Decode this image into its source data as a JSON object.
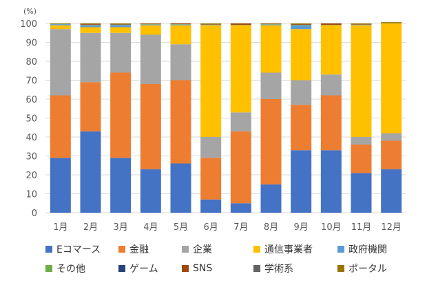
{
  "chart_data": {
    "type": "bar",
    "stacked": true,
    "unit_label": "(%)",
    "ylim": [
      0,
      100
    ],
    "yticks": [
      0,
      10,
      20,
      30,
      40,
      50,
      60,
      70,
      80,
      90,
      100
    ],
    "categories": [
      "1月",
      "2月",
      "3月",
      "4月",
      "5月",
      "6月",
      "7月",
      "8月",
      "9月",
      "10月",
      "11月",
      "12月"
    ],
    "series": [
      {
        "name": "Eコマース",
        "color": "#4472C4",
        "values": [
          29,
          43,
          29,
          23,
          26,
          7,
          5,
          15,
          33,
          33,
          21,
          23
        ]
      },
      {
        "name": "金融",
        "color": "#ED7D31",
        "values": [
          33,
          26,
          45,
          45,
          44,
          22,
          38,
          45,
          24,
          29,
          15,
          15
        ]
      },
      {
        "name": "企業",
        "color": "#A5A5A5",
        "values": [
          35,
          26,
          21,
          26,
          19,
          11,
          10,
          14,
          13,
          11,
          4,
          4
        ]
      },
      {
        "name": "通信事業者",
        "color": "#FFC000",
        "values": [
          2,
          3,
          3,
          5,
          10,
          59,
          46,
          25,
          27,
          26,
          59,
          58
        ]
      },
      {
        "name": "政府機関",
        "color": "#5B9BD5",
        "values": [
          0.6,
          1,
          1.2,
          0.4,
          0.4,
          0.2,
          0,
          0.4,
          2,
          0,
          0.2,
          0
        ]
      },
      {
        "name": "その他",
        "color": "#70AD47",
        "values": [
          0.2,
          0.2,
          0.2,
          0.2,
          0.2,
          0.2,
          0.2,
          0.2,
          0.3,
          0.2,
          0.2,
          0.2
        ]
      },
      {
        "name": "ゲーム",
        "color": "#264478",
        "values": [
          0,
          0,
          0,
          0,
          0,
          0,
          0,
          0,
          0,
          0,
          0,
          0
        ]
      },
      {
        "name": "SNS",
        "color": "#9E480E",
        "values": [
          0,
          0.4,
          0.3,
          0.3,
          0.4,
          0.3,
          0.8,
          0.3,
          0.4,
          0.8,
          0.3,
          0.2
        ]
      },
      {
        "name": "学術系",
        "color": "#636363",
        "values": [
          0,
          0,
          0,
          0,
          0,
          0,
          0,
          0,
          0,
          0,
          0,
          0
        ]
      },
      {
        "name": "ポータル",
        "color": "#997300",
        "values": [
          0.2,
          0.4,
          0.3,
          0.1,
          0,
          0.3,
          0,
          0.1,
          0.3,
          0,
          0.3,
          0.3
        ]
      }
    ],
    "legend_rows": [
      [
        "Eコマース",
        "金融",
        "企業",
        "通信事業者",
        "政府機関"
      ],
      [
        "その他",
        "ゲーム",
        "SNS",
        "学術系",
        "ポータル"
      ]
    ],
    "legend_position": "bottom",
    "grid": true
  }
}
